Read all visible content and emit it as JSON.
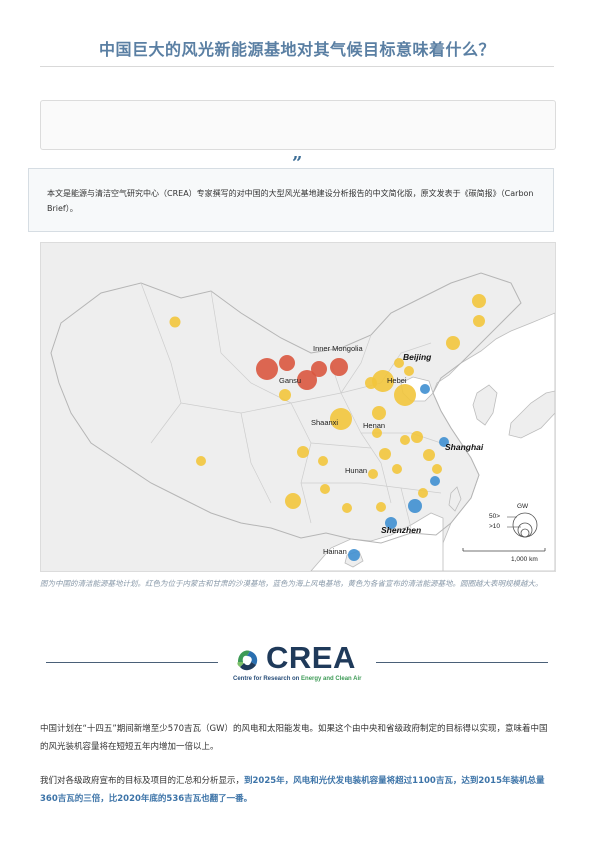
{
  "title": "中国巨大的风光新能源基地对其气候目标意味着什么？",
  "quote_mark": "”",
  "intro": "本文是能源与清洁空气研究中心（CREA）专家撰写的对中国的大型风光基地建设分析报告的中文简化版，原文发表于《碳简报》（Carbon Brief）。",
  "map": {
    "labels": {
      "inner_mongolia": "Inner Mongolia",
      "beijing": "Beijing",
      "gansu": "Gansu",
      "hebei": "Hebei",
      "shaanxi": "Shaanxi",
      "henan": "Henan",
      "shanghai": "Shanghai",
      "hunan": "Hunan",
      "shenzhen": "Shenzhen",
      "hainan": "Hainan"
    },
    "legend": {
      "unit": "GW",
      "size_large": "50>",
      "size_small": ">10"
    },
    "scale": "1,000 km",
    "colors": {
      "desert": "#d9573f",
      "offshore": "#3f8fd0",
      "provincial": "#f2c53c",
      "land": "#eeeeee",
      "sea": "#ffffff",
      "border": "#bdbdbd"
    }
  },
  "caption": "图为中国的清洁能源基地计划。红色为位于内蒙古和甘肃的沙漠基地，蓝色为海上风电基地，黄色为各省宣布的清洁能源基地。圆圈越大表明规模越大。",
  "logo": {
    "word": "CREA",
    "sub_a": "Centre for Research on ",
    "sub_b": "Energy and Clean Air"
  },
  "para1": "中国计划在“十四五”期间新增至少570吉瓦（GW）的风电和太阳能发电。如果这个由中央和省级政府制定的目标得以实现，意味着中国的风光装机容量将在短短五年内增加一倍以上。",
  "para2_prefix": "我们对各级政府宣布的目标及项目的汇总和分析显示，",
  "para2_highlight": "到2025年，风电和光伏发电装机容量将超过1100吉瓦，达到2015年装机总量360吉瓦的三倍，比2020年底的536吉瓦也翻了一番。"
}
